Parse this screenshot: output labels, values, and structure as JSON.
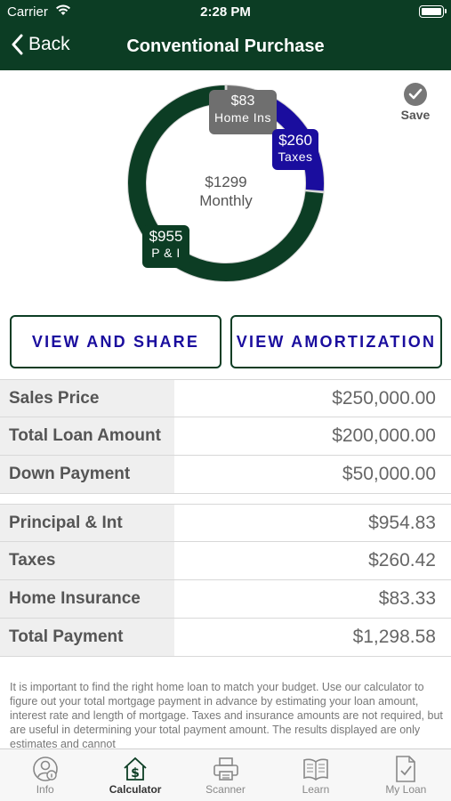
{
  "status_bar": {
    "carrier": "Carrier",
    "time": "2:28 PM"
  },
  "nav": {
    "back_label": "Back",
    "title": "Conventional Purchase"
  },
  "chart_data": {
    "type": "pie",
    "style": "donut",
    "center_label": {
      "amount": "$1299",
      "caption": "Monthly"
    },
    "slices": [
      {
        "name": "P & I",
        "label": "$955",
        "value": 955,
        "color": "#0c3d24"
      },
      {
        "name": "Home Ins",
        "label": "$83",
        "value": 83,
        "color": "#6f6f6f"
      },
      {
        "name": "Taxes",
        "label": "$260",
        "value": 260,
        "color": "#1a0d9e"
      }
    ]
  },
  "save": {
    "label": "Save"
  },
  "buttons": {
    "view_share": "VIEW AND SHARE",
    "view_amortization": "VIEW AMORTIZATION"
  },
  "loan_rows": [
    {
      "label": "Sales Price",
      "value": "$250,000.00"
    },
    {
      "label": "Total Loan Amount",
      "value": "$200,000.00"
    },
    {
      "label": "Down Payment",
      "value": "$50,000.00"
    }
  ],
  "payment_rows": [
    {
      "label": "Principal & Int",
      "value": "$954.83"
    },
    {
      "label": "Taxes",
      "value": "$260.42"
    },
    {
      "label": "Home Insurance",
      "value": "$83.33"
    },
    {
      "label": "Total Payment",
      "value": "$1,298.58"
    }
  ],
  "disclaimer": "It is important to find the right home loan to match your budget. Use our calculator to figure out your total mortgage payment in advance by estimating your loan amount, interest rate and length of mortgage. Taxes and insurance amounts are not required, but are useful in determining your total payment amount. The results displayed are only estimates and cannot",
  "tabs": [
    {
      "label": "Info",
      "icon": "person-info-icon",
      "active": false
    },
    {
      "label": "Calculator",
      "icon": "house-dollar-icon",
      "active": true
    },
    {
      "label": "Scanner",
      "icon": "printer-scanner-icon",
      "active": false
    },
    {
      "label": "Learn",
      "icon": "open-book-icon",
      "active": false
    },
    {
      "label": "My Loan",
      "icon": "document-check-icon",
      "active": false
    }
  ]
}
